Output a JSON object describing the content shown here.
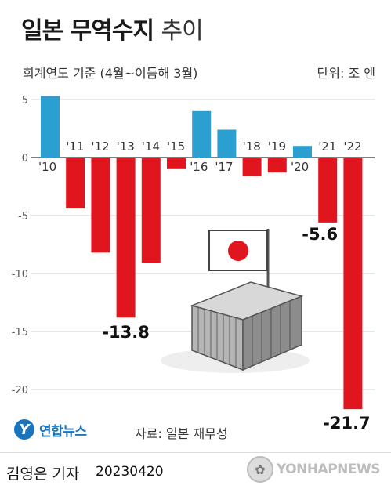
{
  "header": {
    "title_bold": "일본 무역수지",
    "title_light": "추이",
    "subtitle": "회계연도 기준 (4월~이듬해 3월)",
    "unit": "단위: 조 엔"
  },
  "chart_data": {
    "type": "bar",
    "categories": [
      "'10",
      "'11",
      "'12",
      "'13",
      "'14",
      "'15",
      "'16",
      "'17",
      "'18",
      "'19",
      "'20",
      "'21",
      "'22"
    ],
    "values": [
      5.3,
      -4.4,
      -8.2,
      -13.8,
      -9.1,
      -1.0,
      4.0,
      2.4,
      -1.6,
      -1.3,
      1.0,
      -5.6,
      -21.7
    ],
    "data_labels": {
      "3": "-13.8",
      "11": "-5.6",
      "12": "-21.7"
    },
    "yticks": [
      5,
      0,
      -5,
      -10,
      -15,
      -20
    ],
    "ylim": [
      -22,
      6
    ],
    "colors": {
      "positive": "#2a9fd0",
      "negative": "#e0151e"
    },
    "grid": true
  },
  "source": "자료: 일본 재무성",
  "logo": {
    "mark": "Y",
    "text": "연합뉴스"
  },
  "footer": {
    "reporter": "김영은 기자",
    "date": "20230420",
    "agency": "YONHAPNEWS"
  },
  "icons": {
    "flag": "japan-flag-icon",
    "container": "shipping-container-icon"
  }
}
